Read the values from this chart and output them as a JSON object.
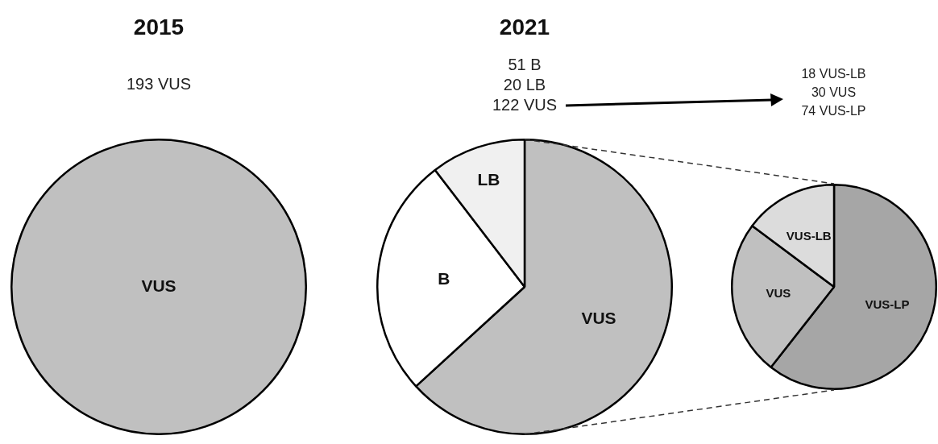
{
  "chart_data": [
    {
      "type": "pie",
      "title": "2015",
      "annotations": [
        "193 VUS"
      ],
      "categories": [
        "VUS"
      ],
      "values": [
        100
      ],
      "colors": [
        "#c0c0c0"
      ],
      "legend": false
    },
    {
      "type": "pie",
      "title": "2021",
      "annotations": [
        "51 B",
        "20 LB",
        "122 VUS"
      ],
      "categories": [
        "VUS",
        "B",
        "LB"
      ],
      "values": [
        63.2,
        26.4,
        10.4
      ],
      "colors": [
        "#c0c0c0",
        "#ffffff",
        "#f0f0f0"
      ],
      "legend": false
    },
    {
      "type": "pie",
      "annotations": [
        "18 VUS-LB",
        "30 VUS",
        "74 VUS-LP"
      ],
      "categories": [
        "VUS-LP",
        "VUS",
        "VUS-LB"
      ],
      "values": [
        60.6,
        24.6,
        14.8
      ],
      "colors": [
        "#a6a6a6",
        "#c0c0c0",
        "#dcdcdc"
      ],
      "legend": false
    }
  ]
}
